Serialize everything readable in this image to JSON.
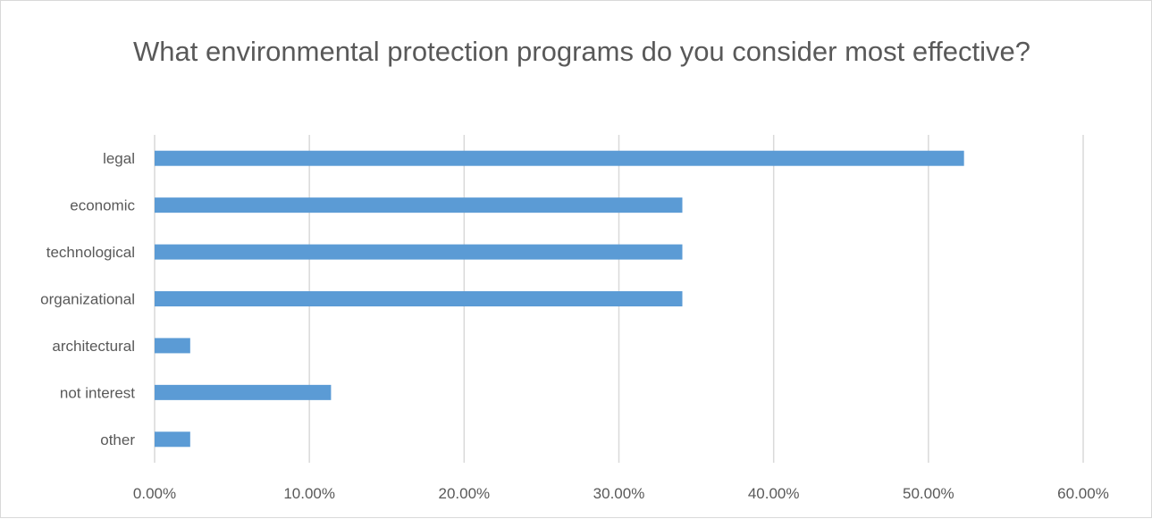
{
  "chart_data": {
    "type": "bar",
    "orientation": "horizontal",
    "title": "What environmental protection programs do you consider most effective?",
    "categories": [
      "legal",
      "economic",
      "technological",
      "organizational",
      "architectural",
      "not interest",
      "other"
    ],
    "values": [
      0.523,
      0.341,
      0.341,
      0.341,
      0.023,
      0.114,
      0.023
    ],
    "xlim": [
      0,
      0.6
    ],
    "x_ticks": [
      0,
      0.1,
      0.2,
      0.3,
      0.4,
      0.5,
      0.6
    ],
    "x_tick_labels": [
      "0.00%",
      "10.00%",
      "20.00%",
      "30.00%",
      "40.00%",
      "50.00%",
      "60.00%"
    ],
    "grid": true,
    "legend": "none",
    "bar_color": "#5b9bd5",
    "grid_color": "#d9d9d9"
  }
}
